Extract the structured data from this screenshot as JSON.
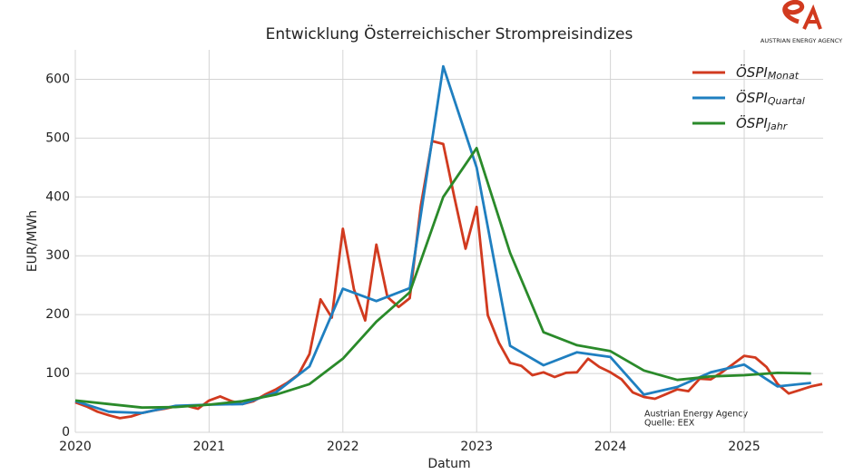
{
  "chart_data": {
    "type": "line",
    "title": "Entwicklung Österreichischer Strompreisindizes",
    "x_label": "Datum",
    "y_label": "EUR/MWh",
    "xlim": [
      2020,
      2025.59
    ],
    "xticks": [
      2020,
      2021,
      2022,
      2023,
      2024,
      2025
    ],
    "ylim": [
      0,
      650
    ],
    "yticks": [
      0,
      100,
      200,
      300,
      400,
      500,
      600
    ],
    "grid": true,
    "legend": "upper right",
    "series": [
      {
        "name": "ÖSPI",
        "name_sub": "Monat",
        "color": "#d13a1f",
        "x": [
          2020,
          2020.083,
          2020.167,
          2020.25,
          2020.333,
          2020.417,
          2020.5,
          2020.583,
          2020.667,
          2020.75,
          2020.833,
          2020.917,
          2021,
          2021.083,
          2021.167,
          2021.25,
          2021.333,
          2021.417,
          2021.5,
          2021.583,
          2021.667,
          2021.75,
          2021.833,
          2021.917,
          2022,
          2022.083,
          2022.167,
          2022.25,
          2022.333,
          2022.417,
          2022.5,
          2022.583,
          2022.667,
          2022.75,
          2022.833,
          2022.917,
          2023,
          2023.083,
          2023.167,
          2023.25,
          2023.333,
          2023.417,
          2023.5,
          2023.583,
          2023.667,
          2023.75,
          2023.833,
          2023.917,
          2024,
          2024.083,
          2024.167,
          2024.25,
          2024.333,
          2024.417,
          2024.5,
          2024.583,
          2024.667,
          2024.75,
          2024.833,
          2024.917,
          2025,
          2025.083,
          2025.167,
          2025.25,
          2025.333,
          2025.417,
          2025.5,
          2025.583
        ],
        "values": [
          51,
          44,
          35,
          29,
          24,
          27,
          33,
          37,
          40,
          44,
          45,
          40,
          54,
          61,
          53,
          48,
          53,
          64,
          73,
          84,
          98,
          133,
          226,
          195,
          346,
          243,
          190,
          319,
          230,
          213,
          228,
          385,
          495,
          490,
          400,
          312,
          383,
          199,
          152,
          118,
          113,
          97,
          102,
          94,
          101,
          102,
          125,
          111,
          102,
          90,
          68,
          60,
          57,
          65,
          73,
          70,
          91,
          90,
          102,
          116,
          130,
          127,
          111,
          82,
          66,
          72,
          78,
          82
        ]
      },
      {
        "name": "ÖSPI",
        "name_sub": "Quartal",
        "color": "#1f7fc0",
        "x": [
          2020,
          2020.25,
          2020.5,
          2020.75,
          2021,
          2021.25,
          2021.5,
          2021.75,
          2022,
          2022.25,
          2022.5,
          2022.75,
          2023,
          2023.25,
          2023.5,
          2023.75,
          2024,
          2024.25,
          2024.5,
          2024.75,
          2025,
          2025.25,
          2025.5
        ],
        "values": [
          53,
          35,
          33,
          45,
          47,
          48,
          68,
          112,
          244,
          223,
          245,
          622,
          450,
          147,
          114,
          136,
          128,
          64,
          77,
          102,
          115,
          78,
          84
        ]
      },
      {
        "name": "ÖSPI",
        "name_sub": "Jahr",
        "color": "#2a8a2a",
        "x": [
          2020,
          2020.25,
          2020.5,
          2020.75,
          2021,
          2021.25,
          2021.5,
          2021.75,
          2022,
          2022.25,
          2022.5,
          2022.75,
          2023,
          2023.25,
          2023.5,
          2023.75,
          2024,
          2024.25,
          2024.5,
          2024.75,
          2025,
          2025.25,
          2025.5
        ],
        "values": [
          54,
          48,
          42,
          43,
          47,
          53,
          64,
          82,
          125,
          188,
          238,
          400,
          483,
          305,
          170,
          148,
          138,
          105,
          89,
          95,
          97,
          101,
          100
        ]
      }
    ],
    "annotations": [
      "Austrian Energy Agency",
      "Quelle: EEX"
    ],
    "logo_text": "AUSTRIAN ENERGY AGENCY"
  }
}
